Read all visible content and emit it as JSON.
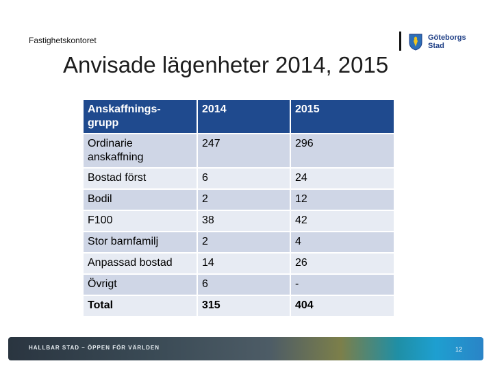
{
  "header": {
    "department": "Fastighetskontoret",
    "logo_text_line1": "Göteborgs",
    "logo_text_line2": "Stad",
    "title": "Anvisade lägenheter 2014, 2015"
  },
  "table": {
    "columns": [
      "Anskaffnings-\ngrupp",
      "2014",
      "2015"
    ],
    "rows": [
      [
        "Ordinarie\nanskaffning",
        "247",
        "296"
      ],
      [
        "Bostad först",
        "6",
        "24"
      ],
      [
        "Bodil",
        "2",
        "12"
      ],
      [
        "F100",
        "38",
        "42"
      ],
      [
        "Stor barnfamilj",
        "2",
        "4"
      ],
      [
        "Anpassad bostad",
        "14",
        "26"
      ],
      [
        "Övrigt",
        "6",
        "-"
      ],
      [
        "Total",
        "315",
        "404"
      ]
    ]
  },
  "footer": {
    "tagline": "HALLBAR STAD – ÖPPEN FÖR VÄRLDEN",
    "page_number": "12"
  },
  "colors": {
    "header_fill": "#1f4a8e",
    "row_fill": "#cfd6e6",
    "row_alt_fill": "#e7ebf3",
    "logo_blue": "#1f3f86"
  }
}
